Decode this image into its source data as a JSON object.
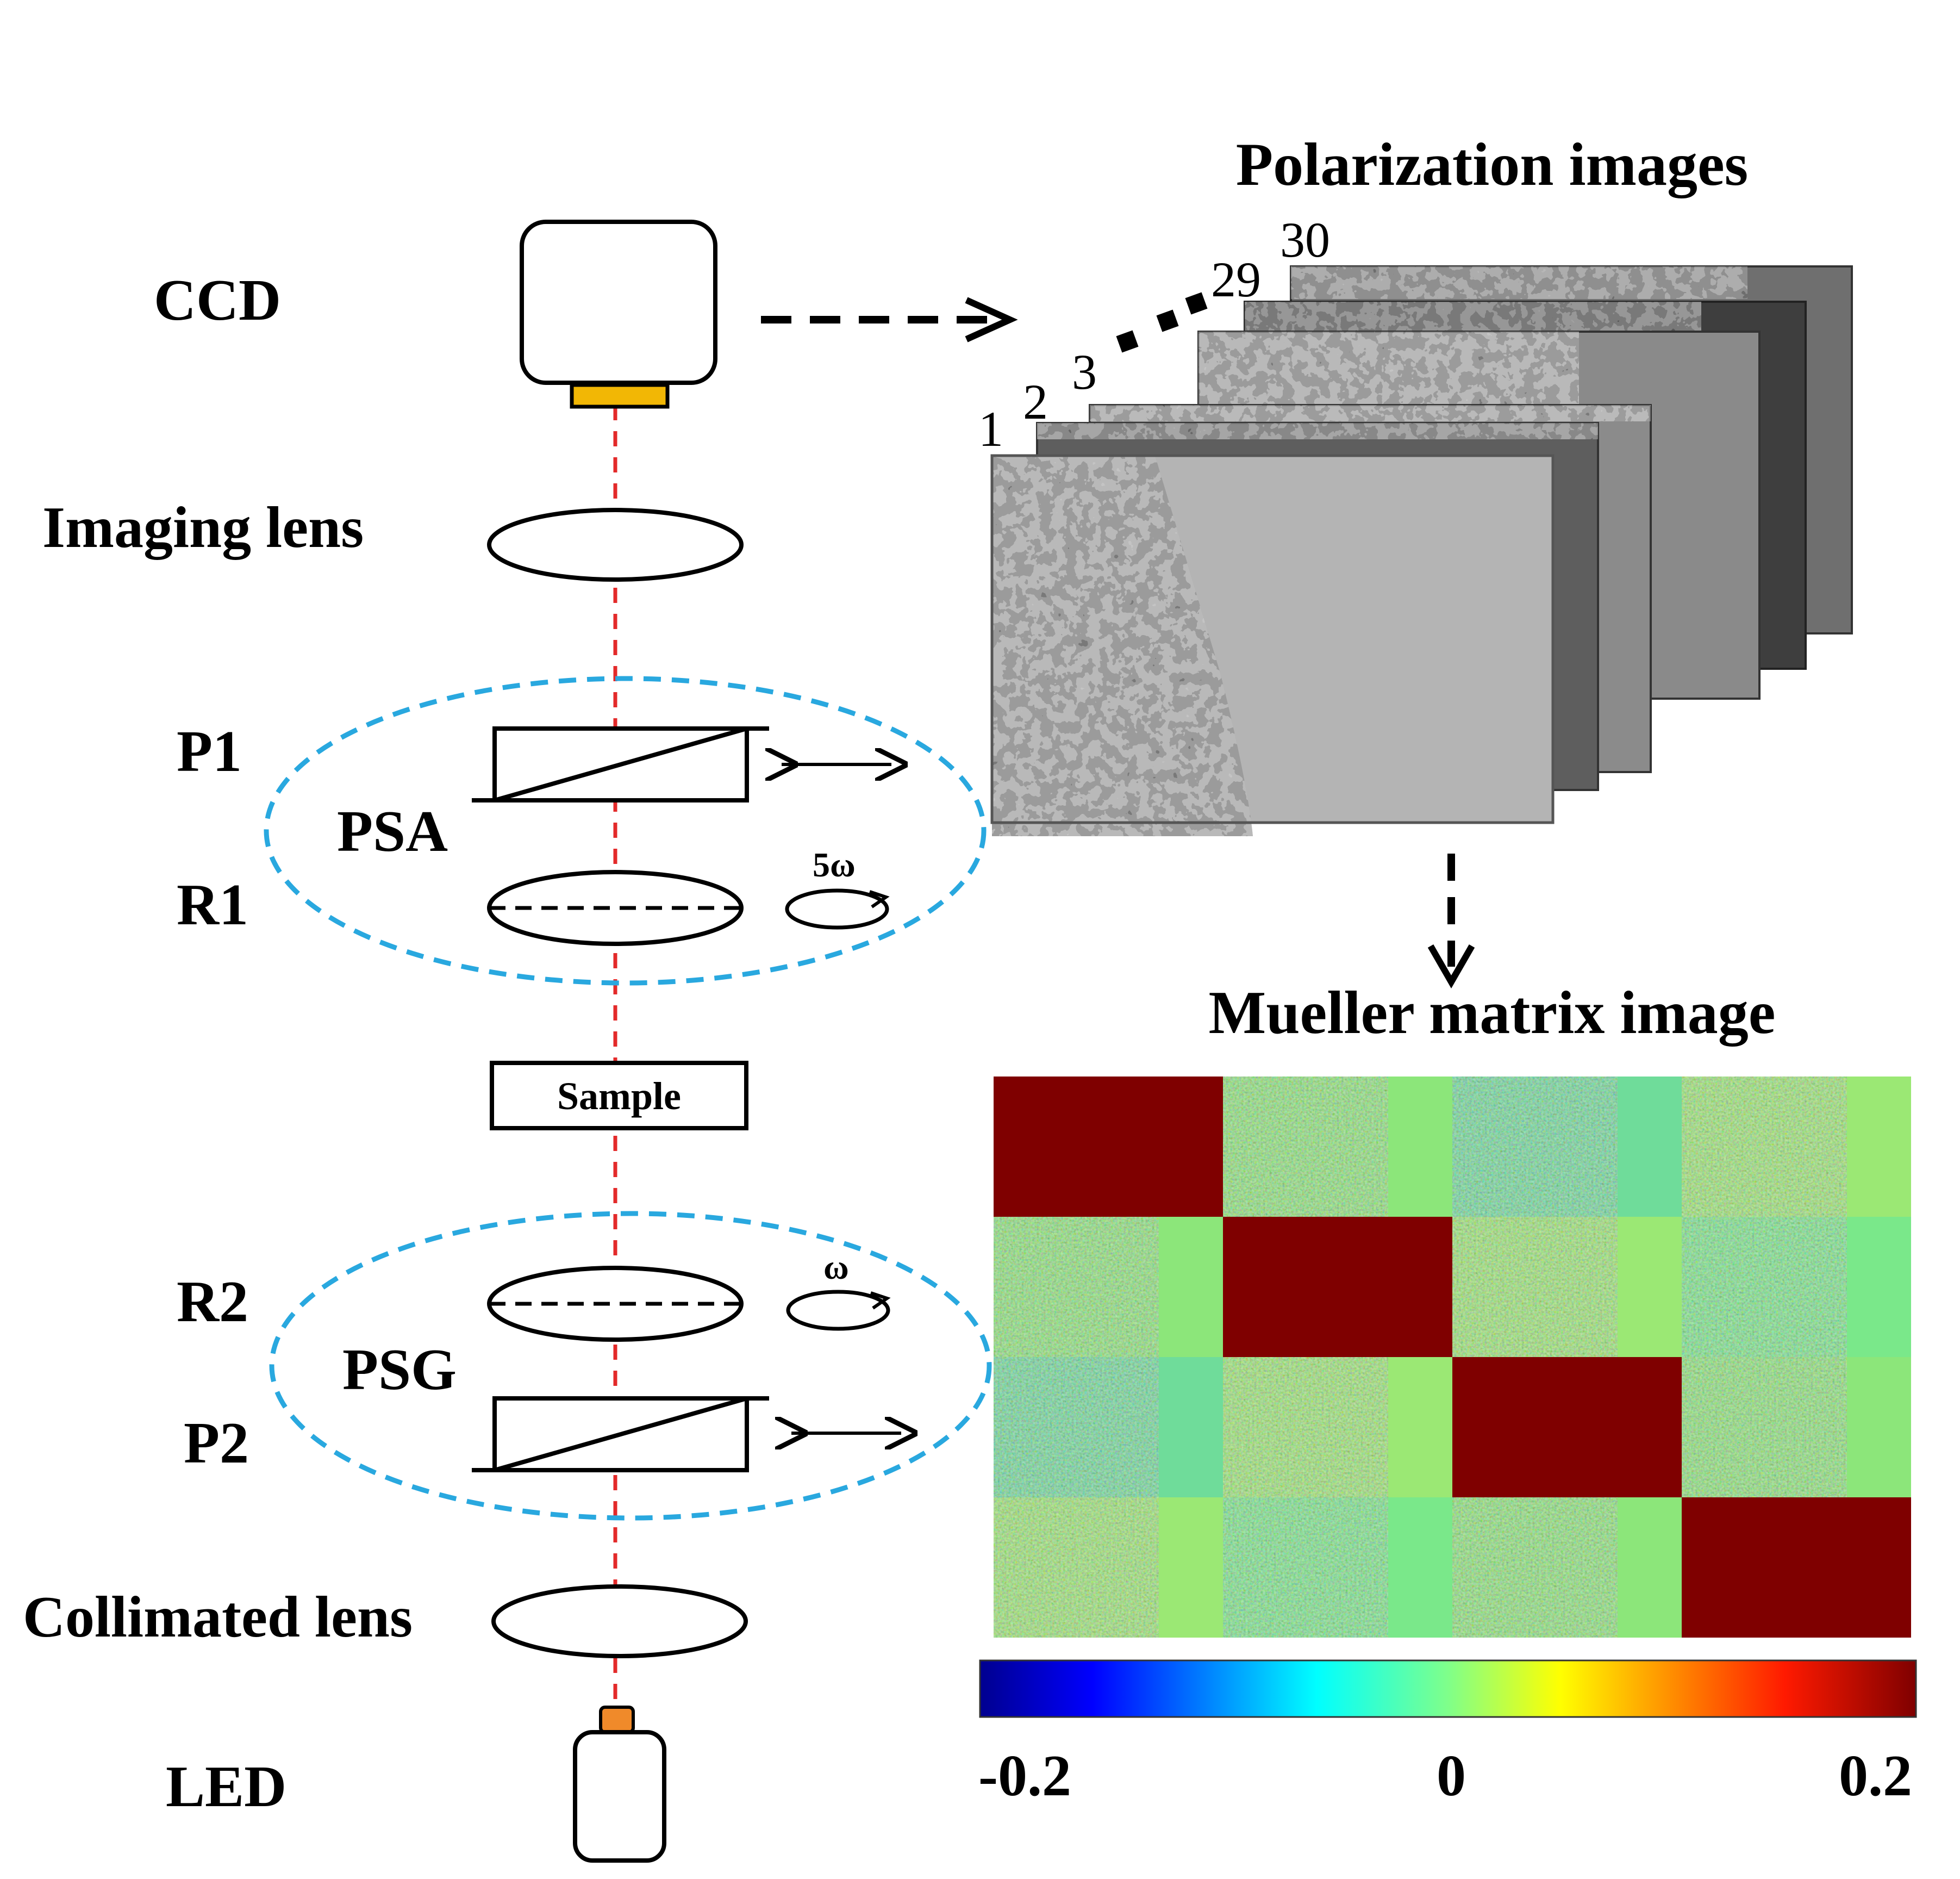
{
  "components": {
    "ccd": "CCD",
    "imaging_lens": "Imaging lens",
    "p1": "P1",
    "psa": "PSA",
    "r1": "R1",
    "r1_rotation": "5ω",
    "sample": "Sample",
    "r2": "R2",
    "r2_rotation": "ω",
    "psg": "PSG",
    "p2": "P2",
    "collimated_lens": "Collimated lens",
    "led": "LED"
  },
  "polarization": {
    "title": "Polarization images",
    "frames": [
      "1",
      "2",
      "3",
      "29",
      "30"
    ]
  },
  "mueller": {
    "title": "Mueller matrix image",
    "colorbar": {
      "min_label": "-0.2",
      "mid_label": "0",
      "max_label": "0.2"
    }
  },
  "colors": {
    "beam": "#e32a2a",
    "ellipse": "#29a8df",
    "ccd_sensor": "#f2b705",
    "led_tip": "#f08a2a",
    "matrix_diagonal": "#7f0000",
    "matrix_offdiag": "#76e882"
  }
}
